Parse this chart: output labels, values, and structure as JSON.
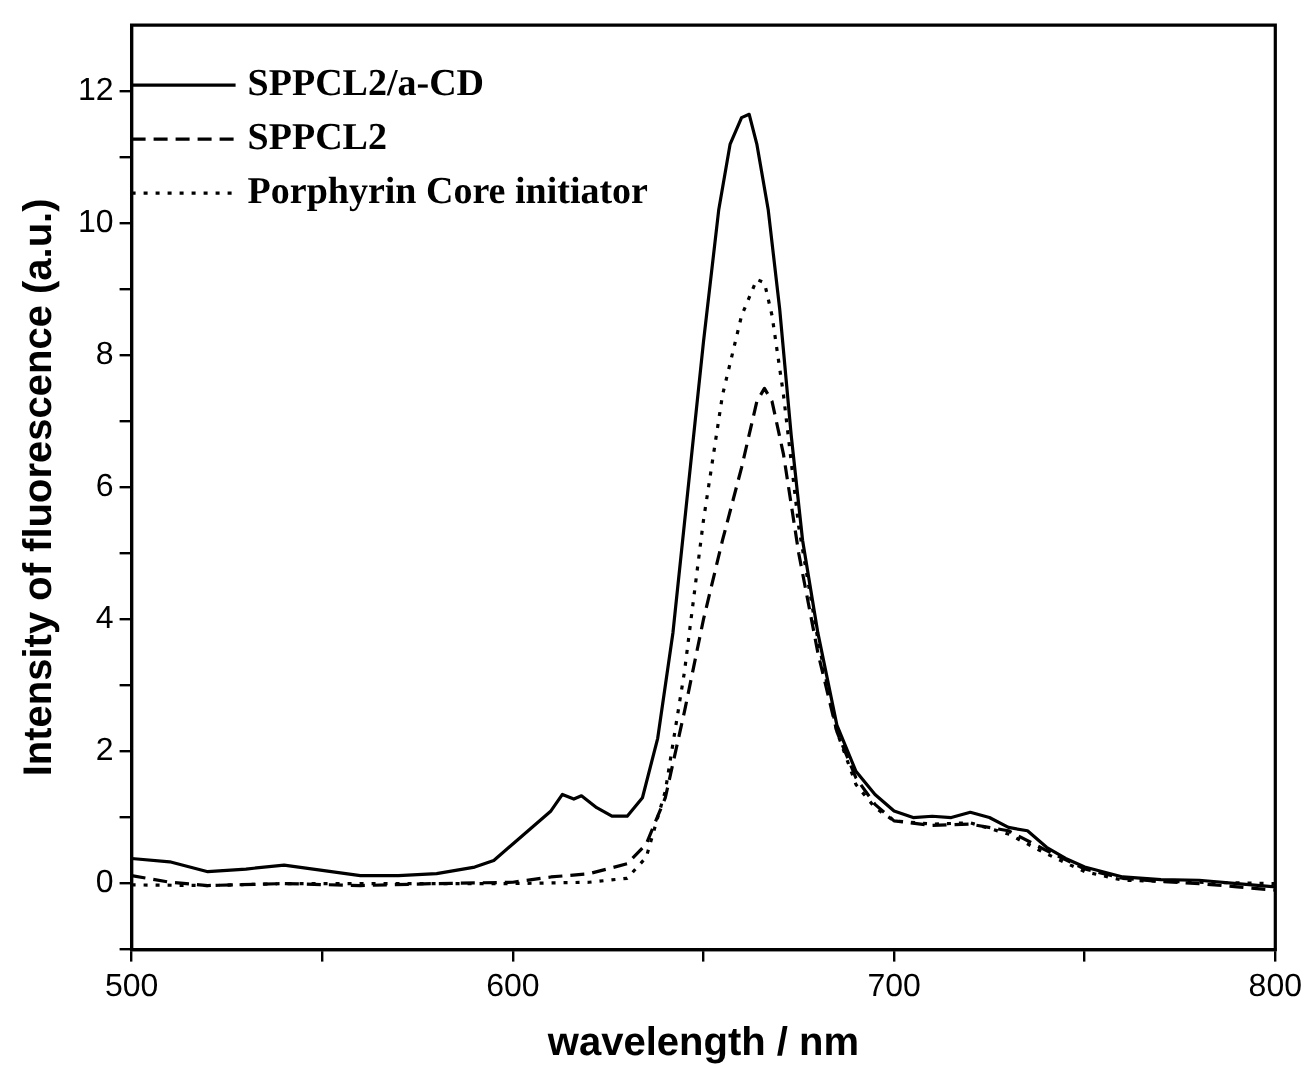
{
  "chart_data": {
    "type": "line",
    "xlabel": "wavelength / nm",
    "ylabel": "Intensity of fluorescence (a.u.)",
    "xlim": [
      500,
      800
    ],
    "ylim": [
      -1,
      13
    ],
    "xticks": [
      500,
      {
        "value": 550,
        "label": null
      },
      600,
      {
        "value": 650,
        "label": null
      },
      700,
      {
        "value": 750,
        "label": null
      },
      800
    ],
    "yticks": [
      {
        "value": -1,
        "label": null
      },
      0,
      {
        "value": 1,
        "label": null
      },
      2,
      {
        "value": 3,
        "label": null
      },
      4,
      {
        "value": 5,
        "label": null
      },
      6,
      {
        "value": 7,
        "label": null
      },
      8,
      {
        "value": 9,
        "label": null
      },
      10,
      {
        "value": 11,
        "label": null
      },
      12
    ],
    "grid": false,
    "legend": "top left",
    "marker": "none",
    "series": [
      {
        "name": "SPPCL2/a-CD",
        "color": "#000000",
        "line_style": "solid",
        "x": [
          500,
          510,
          520,
          530,
          540,
          550,
          560,
          570,
          580,
          590,
          595,
          600,
          605,
          610,
          613,
          616,
          618,
          622,
          626,
          630,
          634,
          638,
          642,
          646,
          650,
          654,
          657,
          660,
          662,
          664,
          667,
          670,
          673,
          676,
          680,
          685,
          690,
          695,
          700,
          705,
          710,
          715,
          720,
          725,
          730,
          735,
          740,
          745,
          750,
          760,
          770,
          780,
          790,
          800
        ],
        "values": [
          0.38,
          0.33,
          0.18,
          0.22,
          0.28,
          0.2,
          0.12,
          0.12,
          0.15,
          0.25,
          0.35,
          0.6,
          0.85,
          1.1,
          1.35,
          1.28,
          1.33,
          1.15,
          1.02,
          1.02,
          1.3,
          2.2,
          3.8,
          6,
          8.2,
          10.2,
          11.2,
          11.6,
          11.65,
          11.2,
          10.2,
          8.7,
          6.8,
          5.2,
          3.8,
          2.4,
          1.7,
          1.35,
          1.1,
          1.0,
          1.02,
          1.0,
          1.08,
          1.0,
          0.85,
          0.8,
          0.55,
          0.38,
          0.25,
          0.1,
          0.06,
          0.05,
          0.0,
          -0.05
        ]
      },
      {
        "name": "SPPCL2",
        "color": "#000000",
        "line_style": "dashed",
        "x": [
          500,
          510,
          520,
          540,
          560,
          580,
          600,
          610,
          620,
          630,
          635,
          640,
          645,
          650,
          655,
          660,
          664,
          666,
          668,
          671,
          675,
          680,
          685,
          690,
          695,
          700,
          710,
          720,
          730,
          740,
          750,
          760,
          770,
          780,
          790,
          800
        ],
        "values": [
          0.12,
          0.02,
          -0.03,
          0,
          -0.03,
          0,
          0.02,
          0.1,
          0.15,
          0.3,
          0.6,
          1.3,
          2.6,
          4.0,
          5.2,
          6.3,
          7.3,
          7.5,
          7.3,
          6.5,
          5.0,
          3.5,
          2.3,
          1.6,
          1.2,
          0.95,
          0.88,
          0.9,
          0.8,
          0.5,
          0.22,
          0.08,
          0.03,
          0.0,
          -0.05,
          -0.1
        ]
      },
      {
        "name": "Porphyrin Core initiator",
        "color": "#000000",
        "line_style": "dotted",
        "x": [
          500,
          520,
          540,
          560,
          580,
          600,
          620,
          630,
          635,
          640,
          645,
          650,
          655,
          660,
          664,
          666,
          668,
          671,
          675,
          680,
          685,
          690,
          695,
          700,
          710,
          720,
          730,
          740,
          750,
          760,
          780,
          800
        ],
        "values": [
          -0.02,
          -0.03,
          0,
          0,
          0,
          0,
          0.02,
          0.08,
          0.4,
          1.4,
          3.2,
          5.5,
          7.4,
          8.6,
          9.15,
          9.1,
          8.6,
          7.4,
          5.4,
          3.7,
          2.3,
          1.5,
          1.15,
          0.95,
          0.9,
          0.92,
          0.75,
          0.45,
          0.18,
          0.05,
          0.02,
          0
        ]
      }
    ]
  }
}
